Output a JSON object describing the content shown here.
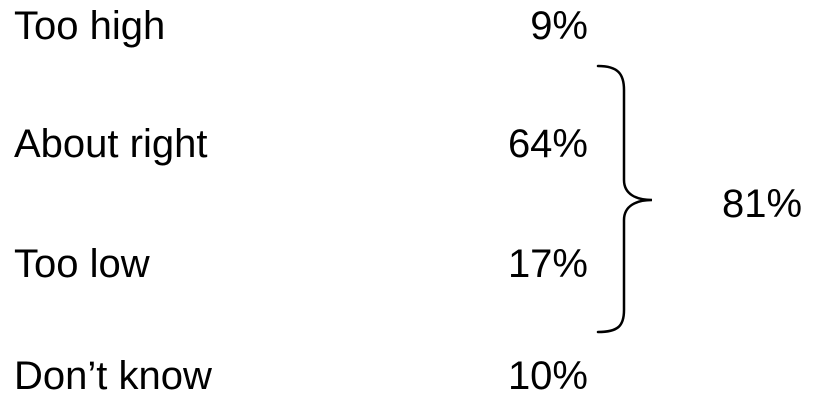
{
  "chart_data": {
    "type": "table",
    "rows": [
      {
        "label": "Too high",
        "value": "9%"
      },
      {
        "label": "About right",
        "value": "64%"
      },
      {
        "label": "Too low",
        "value": "17%"
      },
      {
        "label": "Don’t know",
        "value": "10%"
      }
    ],
    "bracket": {
      "covers": [
        "About right",
        "Too low"
      ],
      "total": "81%"
    }
  }
}
